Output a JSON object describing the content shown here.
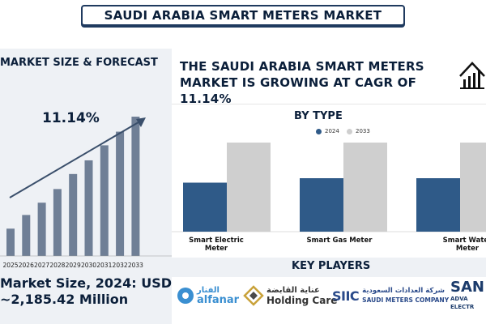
{
  "title": "SAUDI ARABIA SMART METERS MARKET",
  "left": {
    "heading": "MARKET SIZE & FORECAST",
    "cagr": "11.14%",
    "footer_line1": "Market Size, 2024: USD",
    "footer_line2": "~2,185.42 Million"
  },
  "headline": "THE SAUDI ARABIA SMART METERS MARKET IS GROWING AT CAGR OF 11.14%",
  "by_type": {
    "title": "BY TYPE"
  },
  "key_players": {
    "title": "KEY PLAYERS",
    "logos": [
      {
        "arabic": "الفنار",
        "name": "alfanar"
      },
      {
        "arabic": "عناية القابضة",
        "name": "Holding Care"
      },
      {
        "mark": "SIIC"
      },
      {
        "arabic": "شركة العدادات السعودية",
        "name": "SAUDI METERS COMPANY"
      },
      {
        "mark": "SAN",
        "sub": "ADVA ELECTR"
      }
    ]
  },
  "colors": {
    "navy": "#0b1f3a",
    "bar_left": "#6f7f96",
    "bar_2024": "#2f5a88",
    "bar_2033": "#cfcfcf",
    "arrow": "#3a4f6b"
  },
  "chart_data": [
    {
      "type": "bar",
      "title": "MARKET SIZE & FORECAST",
      "categories": [
        "2025",
        "2026",
        "2027",
        "2028",
        "2029",
        "2030",
        "2031",
        "2032",
        "2033"
      ],
      "values": [
        1,
        1.5,
        1.95,
        2.45,
        3.0,
        3.5,
        4.05,
        4.55,
        5.1
      ],
      "annotation": "11.14%",
      "trend_arrow": true
    },
    {
      "type": "bar",
      "title": "BY TYPE",
      "categories": [
        "Smart Electric Meter",
        "Smart Gas Meter",
        "Smart Water Meter"
      ],
      "series": [
        {
          "name": "2024",
          "values": [
            0.55,
            0.6,
            0.6
          ]
        },
        {
          "name": "2033",
          "values": [
            1.0,
            1.0,
            1.0
          ]
        }
      ],
      "legend": "top-center"
    }
  ]
}
